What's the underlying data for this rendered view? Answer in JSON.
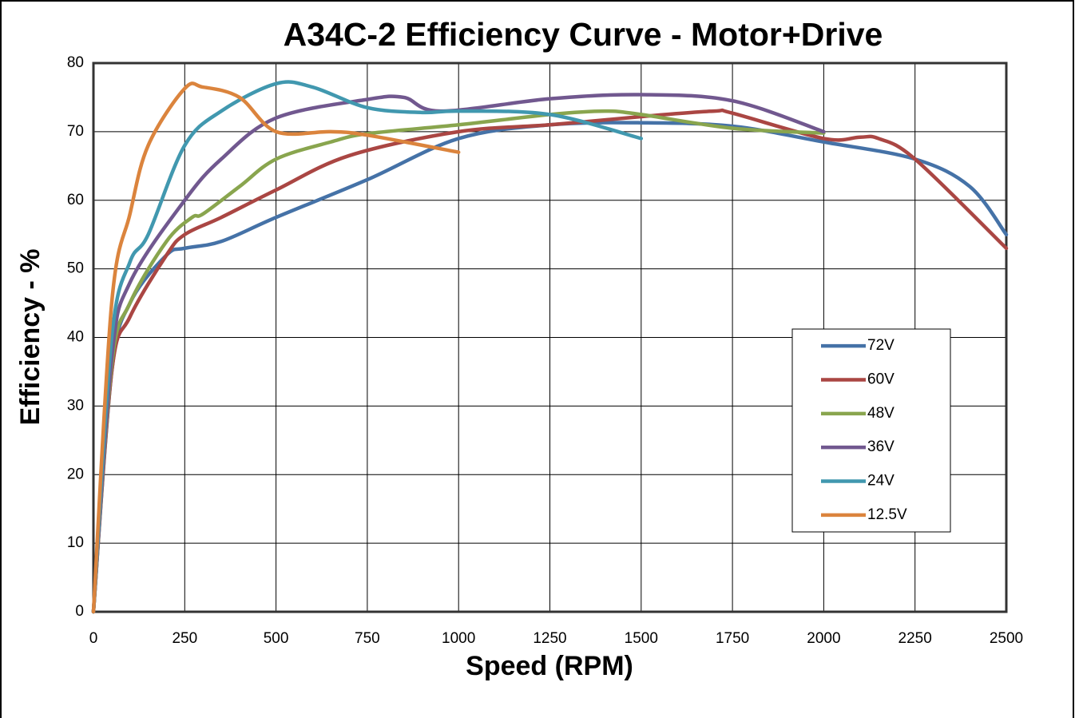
{
  "chart_data": {
    "type": "line",
    "title": "A34C-2 Efficiency Curve - Motor+Drive",
    "xlabel": "Speed (RPM)",
    "ylabel": "Efficiency - %",
    "xlim": [
      0,
      2500
    ],
    "xticks": [
      0,
      250,
      500,
      750,
      1000,
      1250,
      1500,
      1750,
      2000,
      2250,
      2500
    ],
    "ylim": [
      0,
      80
    ],
    "yticks": [
      0,
      10,
      20,
      30,
      40,
      50,
      60,
      70,
      80
    ],
    "grid": true,
    "smooth": true,
    "legend": "right",
    "series": [
      {
        "name": "72V",
        "color": "#4572a7",
        "x": [
          0,
          50,
          100,
          200,
          250,
          350,
          500,
          750,
          1000,
          1250,
          1500,
          1750,
          2000,
          2250,
          2400,
          2500
        ],
        "values": [
          0,
          35,
          45,
          52,
          53,
          54,
          57.5,
          63,
          69,
          71,
          71.3,
          70.8,
          68.5,
          66,
          62,
          55
        ]
      },
      {
        "name": "60V",
        "color": "#aa4643",
        "x": [
          0,
          50,
          100,
          200,
          250,
          350,
          500,
          700,
          1000,
          1250,
          1500,
          1700,
          1750,
          2000,
          2100,
          2150,
          2250,
          2500
        ],
        "values": [
          0,
          35,
          43,
          52,
          55,
          57.5,
          61.5,
          66.5,
          70,
          71,
          72.2,
          73,
          72.7,
          69,
          69.2,
          69,
          66,
          53
        ]
      },
      {
        "name": "48V",
        "color": "#89a54e",
        "x": [
          0,
          50,
          100,
          200,
          270,
          300,
          400,
          500,
          650,
          750,
          1000,
          1250,
          1400,
          1500,
          1750,
          2000
        ],
        "values": [
          0,
          36,
          45,
          54,
          57.5,
          58,
          62,
          66,
          68.5,
          69.7,
          71,
          72.5,
          73,
          72.5,
          70.5,
          69.8
        ]
      },
      {
        "name": "36V",
        "color": "#71588f",
        "x": [
          0,
          50,
          100,
          250,
          350,
          500,
          750,
          850,
          950,
          1250,
          1500,
          1750,
          2000
        ],
        "values": [
          0,
          37,
          48,
          60,
          66,
          72,
          74.7,
          75,
          73,
          74.8,
          75.4,
          74.5,
          70
        ]
      },
      {
        "name": "24V",
        "color": "#4198af",
        "x": [
          0,
          50,
          100,
          150,
          250,
          350,
          500,
          600,
          750,
          900,
          1000,
          1250,
          1500
        ],
        "values": [
          0,
          40,
          51,
          55,
          68,
          73,
          77,
          76.5,
          73.5,
          72.8,
          73,
          72.5,
          69
        ]
      },
      {
        "name": "12.5V",
        "color": "#db843d",
        "x": [
          0,
          50,
          100,
          150,
          250,
          300,
          400,
          500,
          650,
          750,
          1000
        ],
        "values": [
          0,
          45,
          58,
          68,
          76.3,
          76.5,
          75,
          70,
          70,
          69.5,
          67
        ]
      }
    ]
  }
}
